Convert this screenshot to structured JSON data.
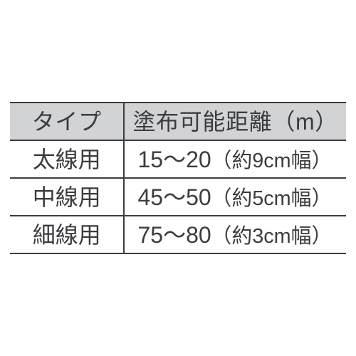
{
  "table": {
    "type": "table",
    "border_color": "#3a3c3f",
    "header_bg": "#d2d3d4",
    "row_bg": "#ffffff",
    "text_color": "#3a3c3f",
    "font_size_pt": 24,
    "columns": [
      {
        "key": "type",
        "label": "タイプ",
        "align": "center",
        "width_pct": 34
      },
      {
        "key": "range",
        "label": "塗布可能距離（m）",
        "align": "center",
        "width_pct": 66
      }
    ],
    "rows": [
      {
        "type": "太線用",
        "range": "15〜20",
        "note": "（約9cm幅）"
      },
      {
        "type": "中線用",
        "range": "45〜50",
        "note": "（約5cm幅）"
      },
      {
        "type": "細線用",
        "range": "75〜80",
        "note": "（約3cm幅）"
      }
    ]
  }
}
